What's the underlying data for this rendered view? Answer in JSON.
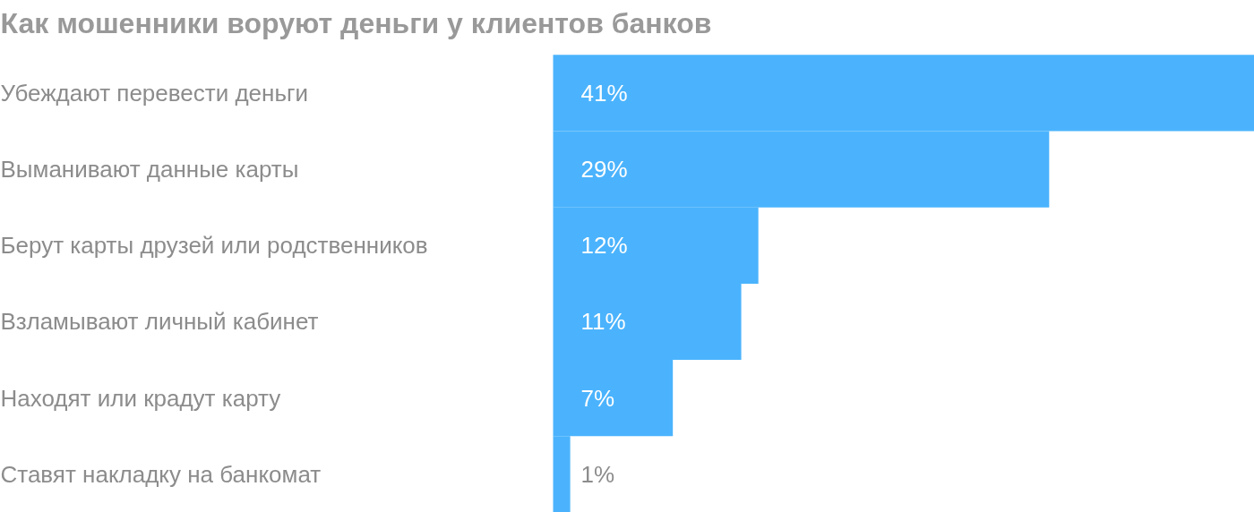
{
  "chart_data": {
    "type": "bar",
    "orientation": "horizontal",
    "title": "Как мошенники воруют деньги у клиентов банков",
    "categories": [
      "Убеждают перевести деньги",
      "Выманивают данные карты",
      "Берут карты друзей или родственников",
      "Взламывают личный кабинет",
      "Находят или крадут карту",
      "Ставят накладку на банкомат"
    ],
    "values": [
      41,
      29,
      12,
      11,
      7,
      1
    ],
    "value_labels": [
      "41%",
      "29%",
      "12%",
      "11%",
      "7%",
      "1%"
    ],
    "color": "#4bb3fd"
  }
}
